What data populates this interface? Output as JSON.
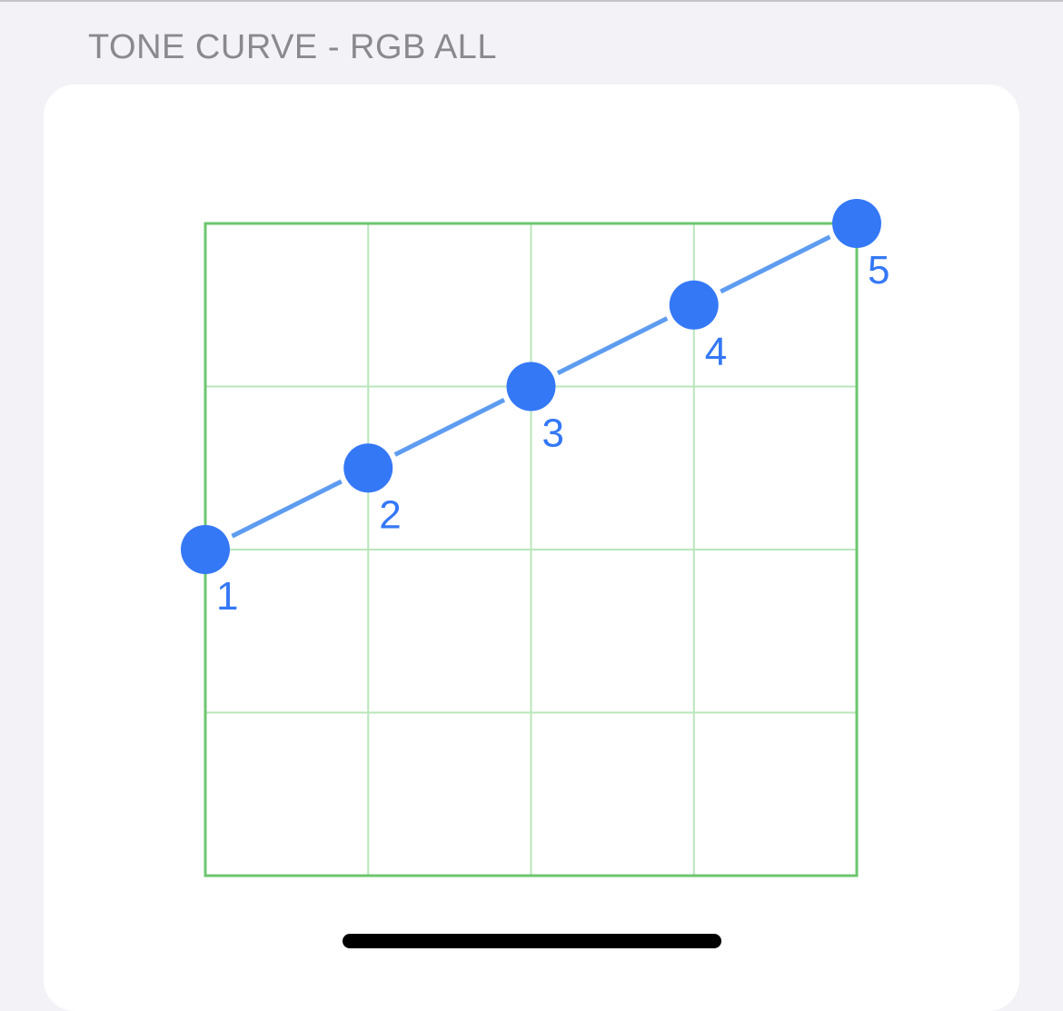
{
  "header": {
    "title": "TONE CURVE - RGB ALL"
  },
  "colors": {
    "background": "#f2f2f7",
    "card": "#ffffff",
    "grid_border": "#6cc66e",
    "grid_line": "#b9e6ba",
    "curve_line": "#5e9cf0",
    "control_point": "#3478f6",
    "label": "#3478f6"
  },
  "curve_editor": {
    "grid_divisions": 4,
    "domain": [
      0,
      1
    ],
    "range": [
      0,
      1
    ],
    "points": [
      {
        "label": "1",
        "x": 0.0,
        "y": 0.5
      },
      {
        "label": "2",
        "x": 0.25,
        "y": 0.625
      },
      {
        "label": "3",
        "x": 0.5,
        "y": 0.75
      },
      {
        "label": "4",
        "x": 0.75,
        "y": 0.875
      },
      {
        "label": "5",
        "x": 1.0,
        "y": 1.0
      }
    ]
  }
}
